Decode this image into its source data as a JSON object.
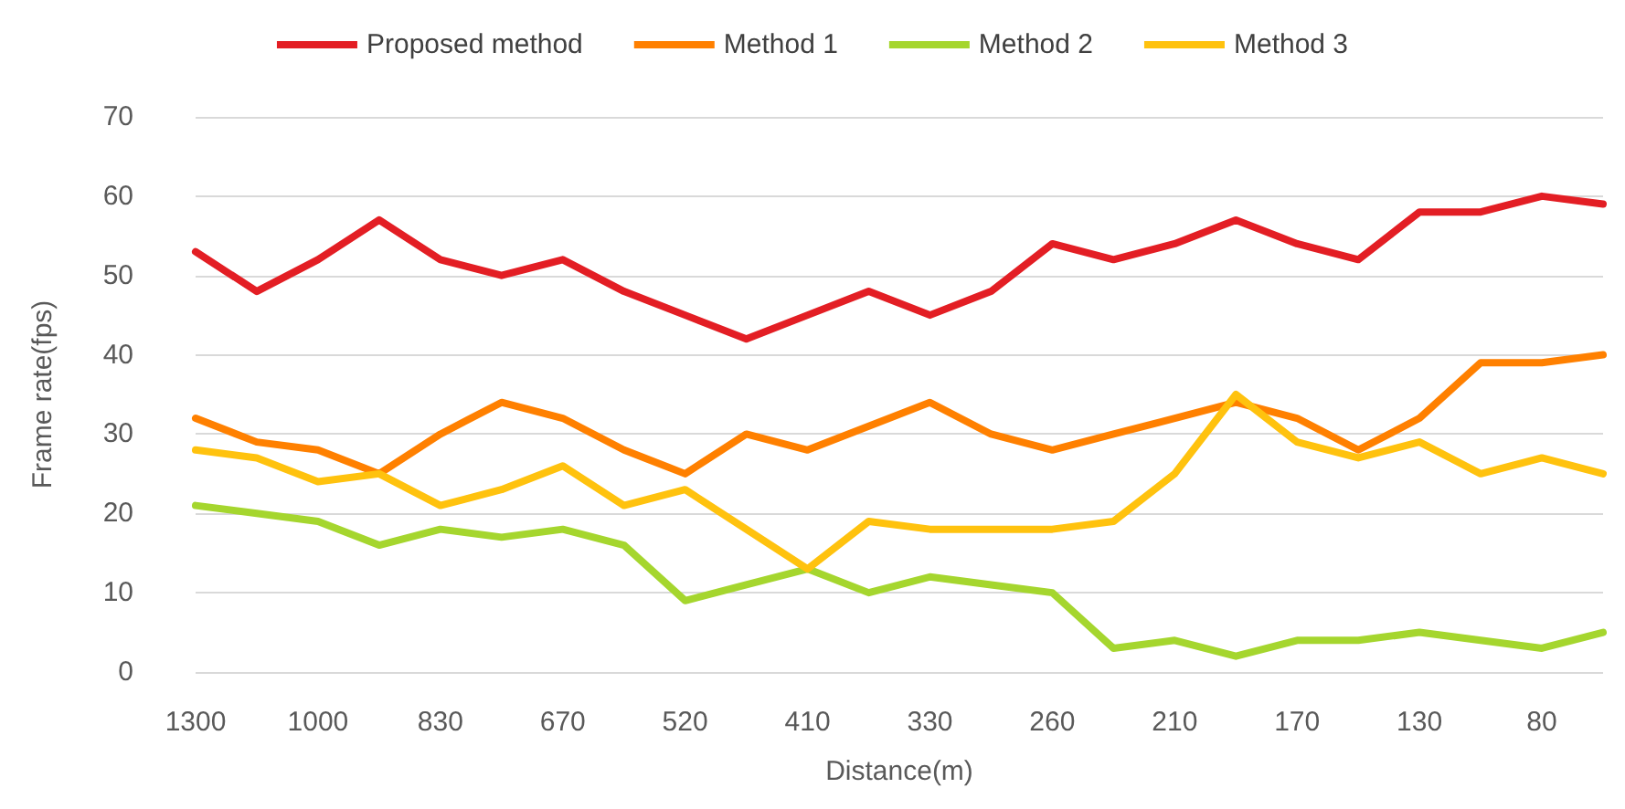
{
  "chart_data": {
    "type": "line",
    "xlabel": "Distance(m)",
    "ylabel": "Frame rate(fps)",
    "categories": [
      "1300",
      null,
      "1000",
      null,
      "830",
      null,
      "670",
      null,
      "520",
      null,
      "410",
      null,
      "330",
      null,
      "260",
      null,
      "210",
      null,
      "170",
      null,
      "130",
      null,
      "80",
      null
    ],
    "series": [
      {
        "name": "Proposed method",
        "color": "#e31e24",
        "values": [
          53,
          48,
          52,
          57,
          52,
          50,
          52,
          48,
          45,
          42,
          45,
          48,
          45,
          48,
          54,
          52,
          54,
          57,
          54,
          52,
          58,
          58,
          60,
          59
        ]
      },
      {
        "name": "Method 1",
        "color": "#ff8000",
        "values": [
          32,
          29,
          28,
          25,
          30,
          34,
          32,
          28,
          25,
          30,
          28,
          31,
          34,
          30,
          28,
          30,
          32,
          34,
          32,
          28,
          32,
          39,
          39,
          40
        ]
      },
      {
        "name": "Method 2",
        "color": "#a5d62e",
        "values": [
          21,
          20,
          19,
          16,
          18,
          17,
          18,
          16,
          9,
          11,
          13,
          10,
          12,
          11,
          10,
          3,
          4,
          2,
          4,
          4,
          5,
          4,
          3,
          5
        ]
      },
      {
        "name": "Method 3",
        "color": "#ffc20e",
        "values": [
          28,
          27,
          24,
          25,
          21,
          23,
          26,
          21,
          23,
          18,
          13,
          19,
          18,
          18,
          18,
          19,
          25,
          35,
          29,
          27,
          29,
          25,
          27,
          25
        ]
      }
    ],
    "ylim": [
      0,
      70
    ],
    "yticks": [
      0,
      10,
      20,
      30,
      40,
      50,
      60,
      70
    ],
    "grid": "y",
    "legend": "top",
    "marker": "none",
    "line_style": "solid"
  }
}
